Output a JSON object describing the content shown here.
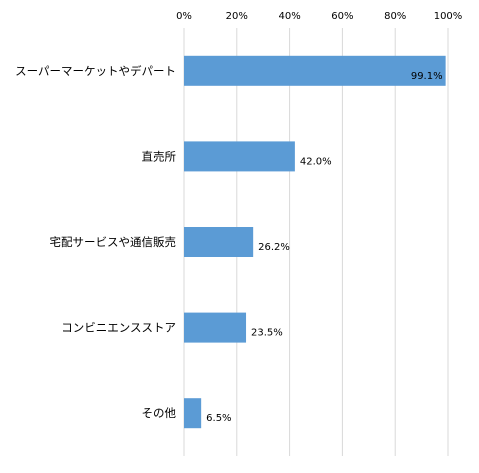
{
  "chart_data": {
    "type": "bar",
    "orientation": "horizontal",
    "categories": [
      "スーパーマーケットやデパート",
      "直売所",
      "宅配サービスや通信販売",
      "コンビニエンスストア",
      "その他"
    ],
    "values": [
      99.1,
      42.0,
      26.2,
      23.5,
      6.5
    ],
    "value_labels": [
      "99.1%",
      "42.0%",
      "26.2%",
      "23.5%",
      "6.5%"
    ],
    "xlim": [
      0,
      100
    ],
    "x_ticks": [
      0,
      20,
      40,
      60,
      80,
      100
    ],
    "x_tick_labels": [
      "0%",
      "20%",
      "40%",
      "60%",
      "80%",
      "100%"
    ],
    "x_axis_position": "top",
    "grid": true,
    "legend": "none",
    "bar_color": "#5B9BD5",
    "grid_color": "#D9D9D9"
  }
}
